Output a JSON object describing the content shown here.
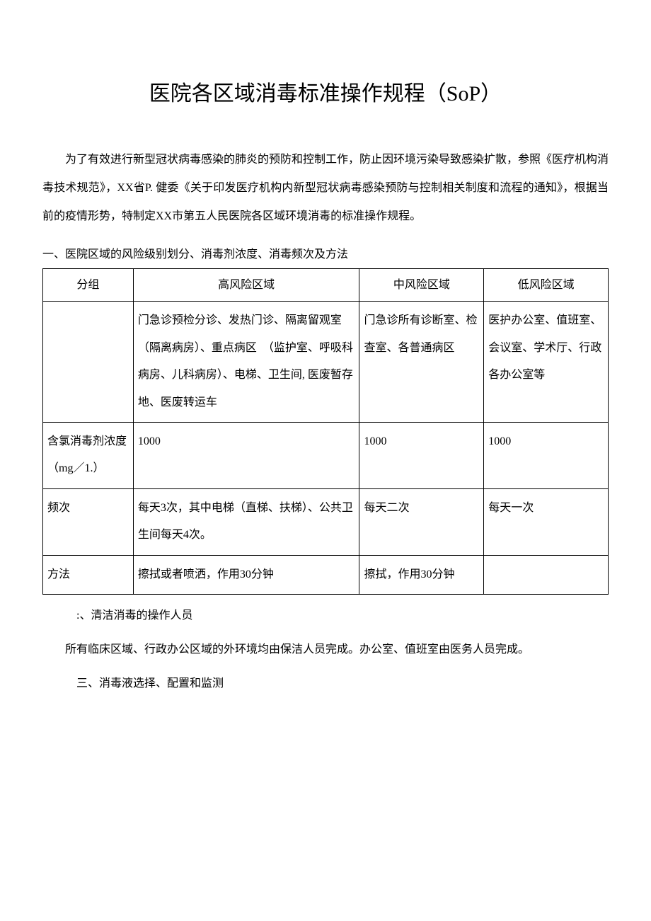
{
  "title": "医院各区域消毒标准操作规程（SoP）",
  "intro": "为了有效进行新型冠状病毒感染的肺炎的预防和控制工作，防止因环境污染导致感染扩散，参照《医疗机构消毒技术规范》，XX省P. 健委《关于印发医疗机构内新型冠状病毒感染预防与控制相关制度和流程的通知》，根据当前的疫情形势，特制定XX市第五人民医院各区域环境消毒的标准操作规程。",
  "section1_heading": "一、医院区域的风险级别划分、消毒剂浓度、消毒频次及方法",
  "table": {
    "headers": {
      "group": "分组",
      "high": "高风险区域",
      "medium": "中风险区域",
      "low": "低风险区域"
    },
    "rows": {
      "areas": {
        "label": "",
        "high": "门急诊预检分诊、发热门诊、隔离留观室（隔离病房）、重点病区　（监护室、呼吸科病房、儿科病房）、电梯、卫生间, 医废暂存地、医废转运车",
        "medium": "门急诊所有诊断室、检查室、各普通病区",
        "low": "医护办公室、值班室、会议室、学术厅、行政各办公室等"
      },
      "concentration": {
        "label": "含氯消毒剂浓度（mg／1.）",
        "high": "1000",
        "medium": "1000",
        "low": "1000"
      },
      "frequency": {
        "label": "频次",
        "high": "每天3次，其中电梯（直梯、扶梯）、公共卫生间每天4次。",
        "medium": "每天二次",
        "low": "每天一次"
      },
      "method": {
        "label": "方法",
        "high": "擦拭或者喷洒，作用30分钟",
        "medium": "擦拭，作用30分钟",
        "low": ""
      }
    }
  },
  "section2_heading": ":、清洁消毒的操作人员",
  "section2_body": "所有临床区域、行政办公区域的外环境均由保洁人员完成。办公室、值班室由医务人员完成。",
  "section3_heading": "三、消毒液选择、配置和监测",
  "colors": {
    "text": "#000000",
    "background": "#ffffff",
    "border": "#000000"
  }
}
